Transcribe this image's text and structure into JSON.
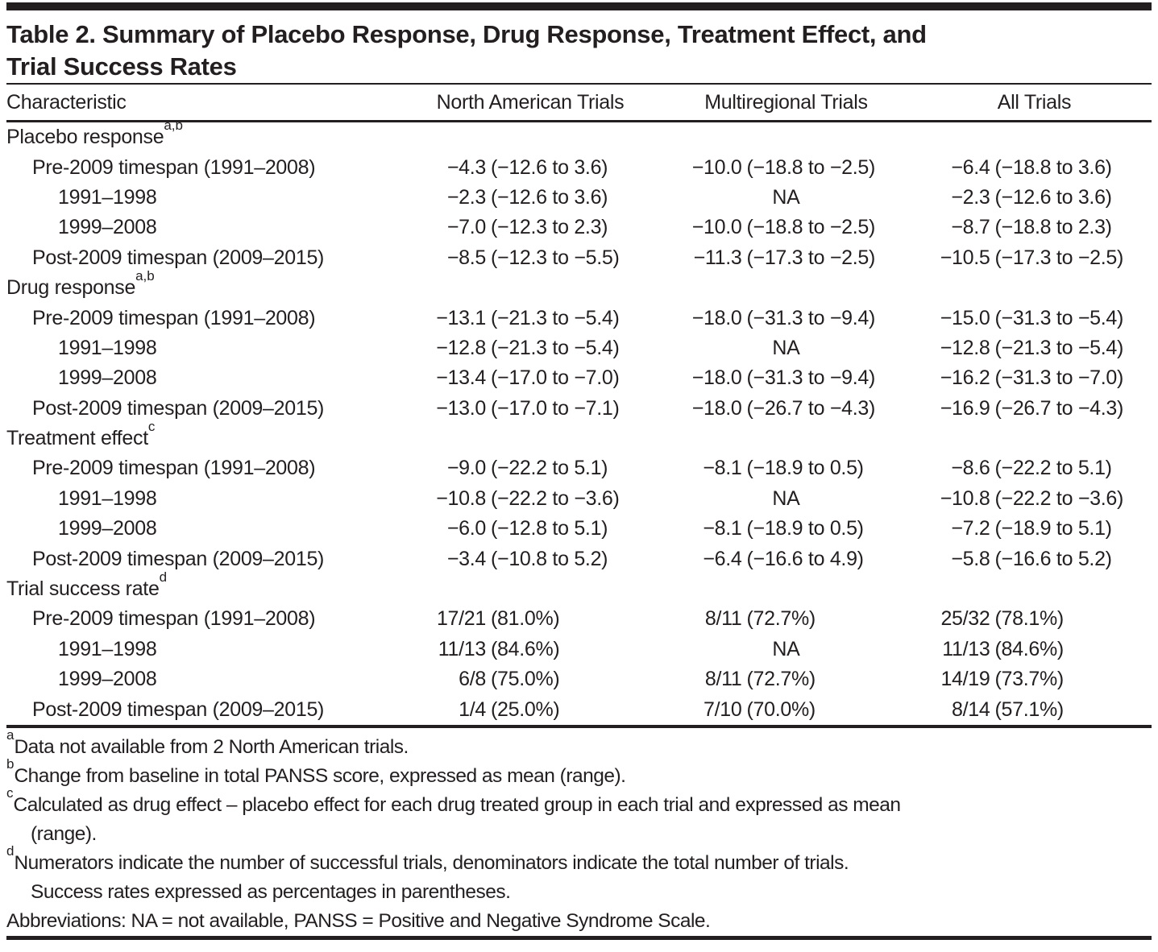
{
  "title": {
    "lines": [
      "Table 2. Summary of Placebo Response, Drug Response, Treatment Effect, and",
      "Trial Success Rates"
    ]
  },
  "columns": [
    "Characteristic",
    "North American Trials",
    "Multiregional Trials",
    "All Trials"
  ],
  "sections": [
    {
      "label": "Placebo response",
      "sup": "a,b",
      "rows": [
        {
          "label": "Pre-2009 timespan (1991–2008)",
          "indent": 1,
          "values": [
            "−4.3 (−12.6 to 3.6)",
            "−10.0 (−18.8 to −2.5)",
            "−6.4 (−18.8 to 3.6)"
          ]
        },
        {
          "label": "1991–1998",
          "indent": 2,
          "values": [
            "−2.3 (−12.6 to 3.6)",
            "NA",
            "−2.3 (−12.6 to 3.6)"
          ]
        },
        {
          "label": "1999–2008",
          "indent": 2,
          "values": [
            "−7.0 (−12.3 to 2.3)",
            "−10.0 (−18.8 to −2.5)",
            "−8.7 (−18.8 to 2.3)"
          ]
        },
        {
          "label": "Post-2009 timespan (2009–2015)",
          "indent": 1,
          "values": [
            "−8.5 (−12.3 to −5.5)",
            "−11.3 (−17.3 to −2.5)",
            "−10.5 (−17.3 to −2.5)"
          ]
        }
      ]
    },
    {
      "label": "Drug response",
      "sup": "a,b",
      "rows": [
        {
          "label": "Pre-2009 timespan (1991–2008)",
          "indent": 1,
          "values": [
            "−13.1 (−21.3 to −5.4)",
            "−18.0 (−31.3 to −9.4)",
            "−15.0 (−31.3 to −5.4)"
          ]
        },
        {
          "label": "1991–1998",
          "indent": 2,
          "values": [
            "−12.8 (−21.3 to −5.4)",
            "NA",
            "−12.8 (−21.3 to −5.4)"
          ]
        },
        {
          "label": "1999–2008",
          "indent": 2,
          "values": [
            "−13.4 (−17.0 to −7.0)",
            "−18.0 (−31.3 to −9.4)",
            "−16.2 (−31.3 to −7.0)"
          ]
        },
        {
          "label": "Post-2009 timespan (2009–2015)",
          "indent": 1,
          "values": [
            "−13.0 (−17.0 to −7.1)",
            "−18.0 (−26.7 to −4.3)",
            "−16.9 (−26.7 to −4.3)"
          ]
        }
      ]
    },
    {
      "label": "Treatment effect",
      "sup": "c",
      "rows": [
        {
          "label": "Pre-2009 timespan (1991–2008)",
          "indent": 1,
          "values": [
            "−9.0 (−22.2 to 5.1)",
            "−8.1 (−18.9 to 0.5)",
            "−8.6 (−22.2 to 5.1)"
          ]
        },
        {
          "label": "1991–1998",
          "indent": 2,
          "values": [
            "−10.8 (−22.2 to −3.6)",
            "NA",
            "−10.8 (−22.2 to −3.6)"
          ]
        },
        {
          "label": "1999–2008",
          "indent": 2,
          "values": [
            "−6.0 (−12.8 to 5.1)",
            "−8.1 (−18.9 to 0.5)",
            "−7.2 (−18.9 to 5.1)"
          ]
        },
        {
          "label": "Post-2009 timespan (2009–2015)",
          "indent": 1,
          "values": [
            "−3.4 (−10.8 to 5.2)",
            "−6.4 (−16.6 to 4.9)",
            "−5.8 (−16.6 to 5.2)"
          ]
        }
      ]
    },
    {
      "label": "Trial success rate",
      "sup": "d",
      "rows": [
        {
          "label": "Pre-2009 timespan (1991–2008)",
          "indent": 1,
          "values": [
            "17/21 (81.0%)",
            "8/11 (72.7%)",
            "25/32 (78.1%)"
          ]
        },
        {
          "label": "1991–1998",
          "indent": 2,
          "values": [
            "11/13 (84.6%)",
            "NA",
            "11/13 (84.6%)"
          ]
        },
        {
          "label": "1999–2008",
          "indent": 2,
          "values": [
            "6/8 (75.0%)",
            "8/11 (72.7%)",
            "14/19 (73.7%)"
          ]
        },
        {
          "label": "Post-2009 timespan (2009–2015)",
          "indent": 1,
          "values": [
            "1/4 (25.0%)",
            "7/10 (70.0%)",
            "8/14 (57.1%)"
          ]
        }
      ]
    }
  ],
  "footnotes": [
    {
      "sup": "a",
      "lines": [
        "Data not available from 2 North American trials."
      ]
    },
    {
      "sup": "b",
      "lines": [
        "Change from baseline in total PANSS score, expressed as mean (range)."
      ]
    },
    {
      "sup": "c",
      "lines": [
        "Calculated as drug effect – placebo effect for each drug treated group in each trial and expressed as mean",
        "(range)."
      ]
    },
    {
      "sup": "d",
      "lines": [
        "Numerators indicate the number of successful trials, denominators indicate the total number of trials.",
        "Success rates expressed as percentages in parentheses."
      ]
    },
    {
      "sup": "",
      "lines": [
        "Abbreviations: NA = not available, PANSS = Positive and Negative Syndrome Scale."
      ]
    }
  ],
  "colors": {
    "text": "#231f20",
    "rule": "#231f20",
    "background": "#ffffff"
  }
}
